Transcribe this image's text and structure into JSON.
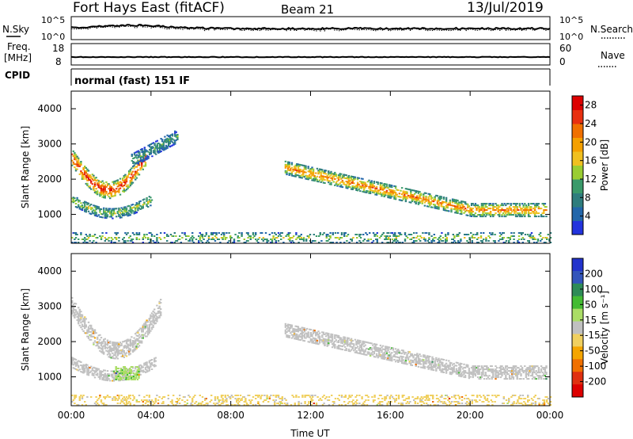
{
  "header": {
    "radar": "Fort Hays East (fitACF)",
    "beam": "Beam 21",
    "date": "13/Jul/2019"
  },
  "status_panels": {
    "nsky_label": "N.Sky",
    "nsearch_label": "N.Search",
    "freq_label": "Freq.",
    "freq_unit": "[MHz]",
    "nave_label": "Nave",
    "cpid_label": "CPID",
    "cpid_text": "normal (fast) 151 IF",
    "noise_left_ticks": [
      "10^5",
      "10^0"
    ],
    "noise_right_ticks": [
      "10^5",
      "10^0"
    ],
    "freq_ticks": [
      "18",
      "8"
    ],
    "nave_ticks": [
      "60",
      "0"
    ]
  },
  "colors": {
    "power_scale": [
      "#2233dd",
      "#2266aa",
      "#2e7d7d",
      "#3a9a6a",
      "#9acd32",
      "#f0c020",
      "#f5a000",
      "#f07000",
      "#e83010",
      "#dd0000"
    ],
    "velocity_scale": [
      "#2233cc",
      "#3355bb",
      "#2e8b57",
      "#44bb33",
      "#aadd66",
      "#c0c0c0",
      "#f0d060",
      "#f5a500",
      "#f07000",
      "#e03010",
      "#dd0000"
    ]
  },
  "chart_data": [
    {
      "type": "heatmap",
      "title": "Power",
      "xlabel": "Time UT",
      "ylabel": "Slant Range [km]",
      "x_ticks": [
        "00:00",
        "04:00",
        "08:00",
        "12:00",
        "16:00",
        "20:00",
        "00:00"
      ],
      "y_ticks": [
        1000,
        2000,
        3000,
        4000
      ],
      "xlim_hours": [
        0,
        24
      ],
      "ylim_km": [
        180,
        4500
      ],
      "colorbar": {
        "label": "Power [dB]",
        "ticks": [
          4,
          8,
          12,
          16,
          20,
          24,
          28
        ],
        "range": [
          0,
          30
        ]
      },
      "echo_regions": [
        {
          "t": [
            0.0,
            3.7
          ],
          "range_km": [
            1500,
            2600
          ],
          "peak_power_db": 28,
          "shape": "u-arc"
        },
        {
          "t": [
            0.0,
            4.0
          ],
          "range_km": [
            700,
            1400
          ],
          "peak_power_db": 14,
          "shape": "u-arc-lower"
        },
        {
          "t": [
            3.0,
            5.3
          ],
          "range_km": [
            2500,
            3200
          ],
          "peak_power_db": 10,
          "shape": "rising"
        },
        {
          "t": [
            10.7,
            23.8
          ],
          "range_km": [
            800,
            2300
          ],
          "peak_power_db": 22,
          "shape": "descending-band"
        },
        {
          "t": [
            0.0,
            24.0
          ],
          "range_km": [
            180,
            450
          ],
          "peak_power_db": 14,
          "shape": "ground-scatter"
        }
      ]
    },
    {
      "type": "heatmap",
      "title": "Velocity",
      "xlabel": "Time UT",
      "ylabel": "Slant Range [km]",
      "x_ticks": [
        "00:00",
        "04:00",
        "08:00",
        "12:00",
        "16:00",
        "20:00",
        "00:00"
      ],
      "y_ticks": [
        1000,
        2000,
        3000,
        4000
      ],
      "xlim_hours": [
        0,
        24
      ],
      "ylim_km": [
        180,
        4500
      ],
      "colorbar": {
        "label": "Velocity [m s⁻¹]",
        "ticks": [
          200,
          100,
          50,
          15,
          -15,
          -50,
          -100,
          -200
        ],
        "range": [
          -250,
          250
        ]
      },
      "echo_regions": [
        {
          "t": [
            0.0,
            4.5
          ],
          "range_km": [
            1500,
            3000
          ],
          "velocity_ms": 0,
          "shape": "u-arc"
        },
        {
          "t": [
            0.0,
            4.2
          ],
          "range_km": [
            700,
            1400
          ],
          "velocity_ms": 0,
          "shape": "u-arc-lower"
        },
        {
          "t": [
            2.2,
            3.4
          ],
          "range_km": [
            900,
            1300
          ],
          "velocity_ms": 60,
          "shape": "patch"
        },
        {
          "t": [
            10.7,
            23.8
          ],
          "range_km": [
            800,
            2300
          ],
          "velocity_ms": 0,
          "shape": "descending-band"
        },
        {
          "t": [
            0.0,
            24.0
          ],
          "range_km": [
            180,
            450
          ],
          "velocity_ms": -40,
          "shape": "ground-scatter"
        }
      ]
    }
  ]
}
